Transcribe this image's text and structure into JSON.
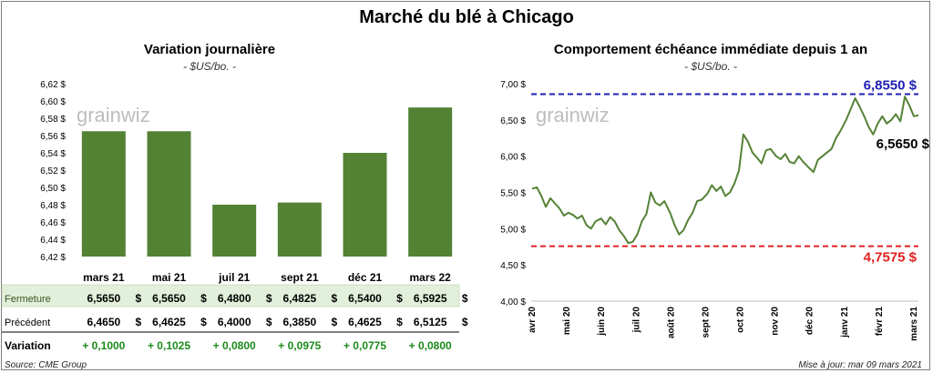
{
  "title": "Marché du blé à Chicago",
  "left": {
    "title": "Variation journalière",
    "unit": "- $US/bo. -",
    "watermark": "grainwiz"
  },
  "right": {
    "title": "Comportement échéance immédiate depuis 1 an",
    "unit": "- $US/bo. -",
    "watermark": "grainwiz",
    "high_label": "6,8550 $",
    "low_label": "4,7575 $",
    "last_label": "6,5650 $"
  },
  "table": {
    "rows": [
      {
        "label": "Fermeture",
        "values": [
          "6,5650",
          "6,5650",
          "6,4800",
          "6,4825",
          "6,5400",
          "6,5925"
        ],
        "suffix": "$"
      },
      {
        "label": "Précédent",
        "values": [
          "6,4650",
          "6,4625",
          "6,4000",
          "6,3850",
          "6,4625",
          "6,5125"
        ],
        "suffix": "$"
      },
      {
        "label": "Variation",
        "values": [
          "+ 0,1000",
          "+ 0,1025",
          "+ 0,0800",
          "+ 0,0975",
          "+ 0,0775",
          "+ 0,0800"
        ],
        "suffix": ""
      }
    ]
  },
  "footer": {
    "source": "Source: CME Group",
    "updated": "Mise à jour: mar 09 mars 2021"
  },
  "colors": {
    "bar": "#548235",
    "line": "#548235",
    "high": "#1f1fb4",
    "low": "#e02020",
    "variation": "#1a8a1a",
    "fermeture_bg": "#e2efda"
  },
  "chart_data": [
    {
      "type": "bar",
      "categories": [
        "mars 21",
        "mai 21",
        "juil 21",
        "sept 21",
        "déc 21",
        "mars 22"
      ],
      "values": [
        6.565,
        6.565,
        6.48,
        6.4825,
        6.54,
        6.5925
      ],
      "ylim": [
        6.42,
        6.62
      ],
      "yticks": [
        "6,42 $",
        "6,44 $",
        "6,46 $",
        "6,48 $",
        "6,50 $",
        "6,52 $",
        "6,54 $",
        "6,56 $",
        "6,58 $",
        "6,60 $",
        "6,62 $"
      ],
      "title": "Variation journalière"
    },
    {
      "type": "line",
      "title": "Comportement échéance immédiate depuis 1 an",
      "ylim": [
        4.0,
        7.0
      ],
      "yticks": [
        "4,00 $",
        "4,50 $",
        "5,00 $",
        "5,50 $",
        "6,00 $",
        "6,50 $",
        "7,00 $"
      ],
      "xticks": [
        "avr 20",
        "mai 20",
        "juin 20",
        "juil 20",
        "août 20",
        "sept 20",
        "oct 20",
        "nov 20",
        "déc 20",
        "janv 21",
        "févr 21",
        "mars 21"
      ],
      "x_range": [
        "2020-03-31",
        "2021-03-09"
      ],
      "series": [
        {
          "x": [
            "2020-04-01",
            "2020-04-05",
            "2020-04-09",
            "2020-04-13",
            "2020-04-17",
            "2020-04-21",
            "2020-04-25",
            "2020-04-29",
            "2020-05-03",
            "2020-05-07",
            "2020-05-11",
            "2020-05-15",
            "2020-05-19",
            "2020-05-23",
            "2020-05-27",
            "2020-06-01",
            "2020-06-05",
            "2020-06-09",
            "2020-06-13",
            "2020-06-17",
            "2020-06-21",
            "2020-06-25",
            "2020-06-29",
            "2020-07-03",
            "2020-07-07",
            "2020-07-11",
            "2020-07-15",
            "2020-07-19",
            "2020-07-23",
            "2020-07-27",
            "2020-08-01",
            "2020-08-05",
            "2020-08-09",
            "2020-08-13",
            "2020-08-17",
            "2020-08-21",
            "2020-08-25",
            "2020-08-29",
            "2020-09-03",
            "2020-09-07",
            "2020-09-11",
            "2020-09-15",
            "2020-09-19",
            "2020-09-23",
            "2020-09-27",
            "2020-10-01",
            "2020-10-05",
            "2020-10-09",
            "2020-10-13",
            "2020-10-17",
            "2020-10-21",
            "2020-10-25",
            "2020-10-29",
            "2020-11-03",
            "2020-11-07",
            "2020-11-11",
            "2020-11-15",
            "2020-11-19",
            "2020-11-23",
            "2020-11-27",
            "2020-12-02",
            "2020-12-06",
            "2020-12-10",
            "2020-12-14",
            "2020-12-18",
            "2020-12-22",
            "2020-12-26",
            "2020-12-30",
            "2021-01-04",
            "2021-01-08",
            "2021-01-12",
            "2021-01-16",
            "2021-01-20",
            "2021-01-24",
            "2021-01-28",
            "2021-02-01",
            "2021-02-05",
            "2021-02-09",
            "2021-02-13",
            "2021-02-17",
            "2021-02-21",
            "2021-02-25",
            "2021-03-01",
            "2021-03-05",
            "2021-03-09"
          ],
          "y": [
            5.55,
            5.57,
            5.45,
            5.3,
            5.42,
            5.35,
            5.28,
            5.18,
            5.22,
            5.19,
            5.14,
            5.18,
            5.05,
            5.0,
            5.1,
            5.14,
            5.06,
            5.16,
            5.1,
            4.98,
            4.9,
            4.8,
            4.82,
            4.92,
            5.1,
            5.2,
            5.5,
            5.36,
            5.32,
            5.38,
            5.22,
            5.05,
            4.92,
            4.98,
            5.12,
            5.22,
            5.38,
            5.4,
            5.48,
            5.6,
            5.52,
            5.58,
            5.45,
            5.5,
            5.62,
            5.8,
            6.3,
            6.2,
            6.05,
            5.98,
            5.9,
            6.08,
            6.1,
            6.0,
            5.96,
            6.03,
            5.92,
            5.9,
            6.0,
            5.92,
            5.84,
            5.78,
            5.95,
            6.0,
            6.05,
            6.1,
            6.25,
            6.35,
            6.5,
            6.65,
            6.8,
            6.68,
            6.55,
            6.4,
            6.3,
            6.45,
            6.55,
            6.45,
            6.5,
            6.58,
            6.48,
            6.82,
            6.7,
            6.55,
            6.565
          ]
        }
      ],
      "hlines": [
        {
          "value": 6.855,
          "label": "6,8550 $",
          "color": "#1f1fb4"
        },
        {
          "value": 4.7575,
          "label": "4,7575 $",
          "color": "#e02020"
        }
      ]
    }
  ]
}
